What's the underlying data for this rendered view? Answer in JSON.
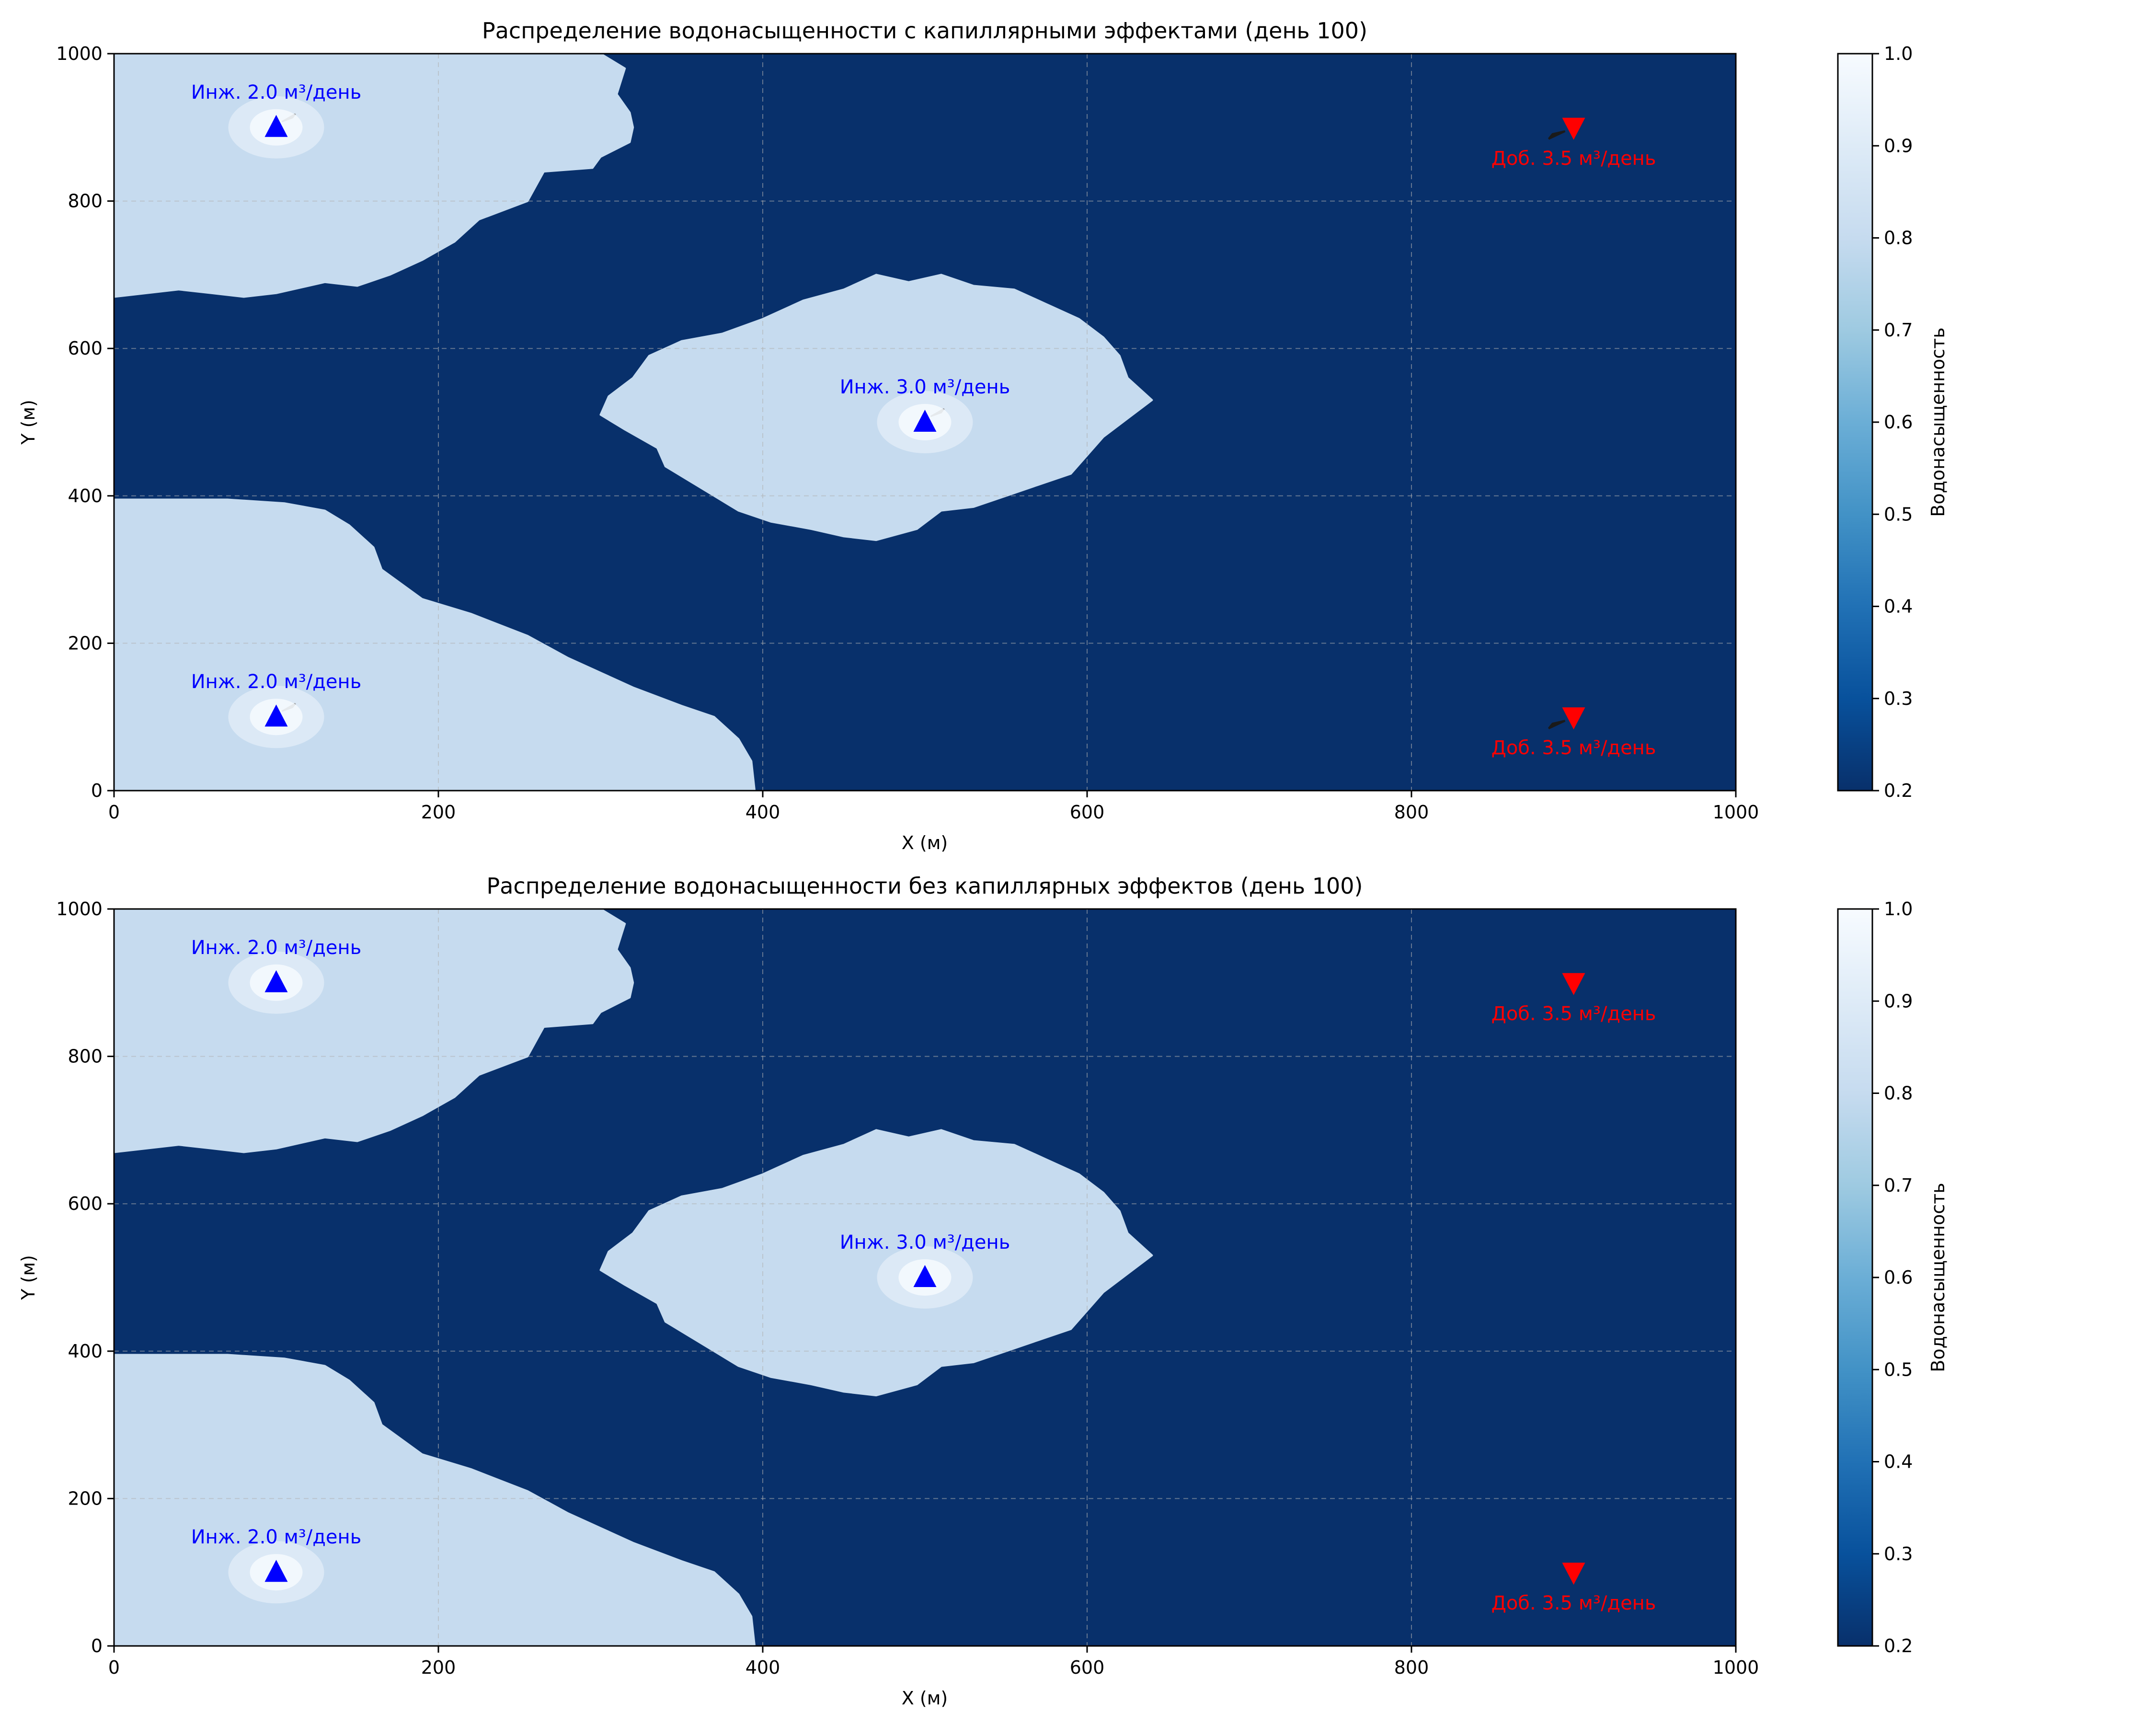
{
  "chart_data": [
    {
      "type": "heatmap",
      "title": "Распределение водонасыщенности с капиллярными эффектами (день 100)",
      "xlabel": "X (м)",
      "ylabel": "Y (м)",
      "xlim": [
        0,
        1000
      ],
      "ylim": [
        0,
        1000
      ],
      "xticks": [
        "0",
        "200",
        "400",
        "600",
        "800",
        "1000"
      ],
      "yticks": [
        "0",
        "200",
        "400",
        "600",
        "800",
        "1000"
      ],
      "grid": true,
      "colorbar": {
        "label": "Водонасыщенность",
        "range": [
          0.2,
          1.0
        ],
        "ticks": [
          "0.2",
          "0.3",
          "0.4",
          "0.5",
          "0.6",
          "0.7",
          "0.8",
          "0.9",
          "1.0"
        ],
        "colormap": "Blues_r"
      },
      "field": {
        "background_saturation": 0.2,
        "flooded_saturation": 0.78,
        "flooded_regions": [
          {
            "name": "top-left",
            "boundary": [
              [
                0,
                1000
              ],
              [
                300,
                1000
              ],
              [
                315,
                980
              ],
              [
                310,
                945
              ],
              [
                318,
                920
              ],
              [
                320,
                900
              ],
              [
                318,
                880
              ],
              [
                300,
                860
              ],
              [
                295,
                845
              ],
              [
                265,
                840
              ],
              [
                260,
                820
              ],
              [
                255,
                800
              ],
              [
                225,
                775
              ],
              [
                210,
                745
              ],
              [
                190,
                720
              ],
              [
                170,
                700
              ],
              [
                150,
                685
              ],
              [
                130,
                690
              ],
              [
                100,
                675
              ],
              [
                80,
                670
              ],
              [
                60,
                675
              ],
              [
                40,
                680
              ],
              [
                0,
                670
              ]
            ]
          },
          {
            "name": "center",
            "boundary": [
              [
                330,
                590
              ],
              [
                350,
                610
              ],
              [
                375,
                620
              ],
              [
                400,
                640
              ],
              [
                425,
                665
              ],
              [
                450,
                680
              ],
              [
                470,
                700
              ],
              [
                490,
                690
              ],
              [
                510,
                700
              ],
              [
                530,
                685
              ],
              [
                555,
                680
              ],
              [
                575,
                660
              ],
              [
                595,
                640
              ],
              [
                610,
                615
              ],
              [
                620,
                590
              ],
              [
                625,
                560
              ],
              [
                640,
                530
              ],
              [
                625,
                505
              ],
              [
                610,
                480
              ],
              [
                600,
                455
              ],
              [
                590,
                430
              ],
              [
                570,
                415
              ],
              [
                550,
                400
              ],
              [
                530,
                385
              ],
              [
                510,
                380
              ],
              [
                495,
                355
              ],
              [
                470,
                340
              ],
              [
                450,
                345
              ],
              [
                430,
                355
              ],
              [
                405,
                365
              ],
              [
                385,
                380
              ],
              [
                370,
                400
              ],
              [
                355,
                420
              ],
              [
                340,
                440
              ],
              [
                335,
                465
              ],
              [
                315,
                490
              ],
              [
                300,
                510
              ],
              [
                305,
                535
              ],
              [
                320,
                560
              ]
            ]
          },
          {
            "name": "bottom-left",
            "boundary": [
              [
                0,
                0
              ],
              [
                395,
                0
              ],
              [
                393,
                40
              ],
              [
                385,
                70
              ],
              [
                370,
                100
              ],
              [
                350,
                115
              ],
              [
                320,
                140
              ],
              [
                300,
                160
              ],
              [
                280,
                180
              ],
              [
                255,
                210
              ],
              [
                220,
                240
              ],
              [
                190,
                260
              ],
              [
                165,
                300
              ],
              [
                160,
                330
              ],
              [
                145,
                360
              ],
              [
                130,
                380
              ],
              [
                105,
                390
              ],
              [
                70,
                395
              ],
              [
                0,
                395
              ]
            ]
          }
        ]
      },
      "wells": [
        {
          "kind": "injector",
          "x": 100,
          "y": 900,
          "label": "Инж. 2.0 м³/день"
        },
        {
          "kind": "injector",
          "x": 100,
          "y": 100,
          "label": "Инж. 2.0 м³/день"
        },
        {
          "kind": "injector",
          "x": 500,
          "y": 500,
          "label": "Инж. 3.0 м³/день"
        },
        {
          "kind": "producer",
          "x": 900,
          "y": 900,
          "label": "Доб. 3.5 м³/день"
        },
        {
          "kind": "producer",
          "x": 900,
          "y": 100,
          "label": "Доб. 3.5 м³/день"
        }
      ],
      "velocity_arrows": true
    },
    {
      "type": "heatmap",
      "title": "Распределение водонасыщенности без капиллярных эффектов (день 100)",
      "xlabel": "X (м)",
      "ylabel": "Y (м)",
      "xlim": [
        0,
        1000
      ],
      "ylim": [
        0,
        1000
      ],
      "xticks": [
        "0",
        "200",
        "400",
        "600",
        "800",
        "1000"
      ],
      "yticks": [
        "0",
        "200",
        "400",
        "600",
        "800",
        "1000"
      ],
      "grid": true,
      "colorbar": {
        "label": "Водонасыщенность",
        "range": [
          0.2,
          1.0
        ],
        "ticks": [
          "0.2",
          "0.3",
          "0.4",
          "0.5",
          "0.6",
          "0.7",
          "0.8",
          "0.9",
          "1.0"
        ],
        "colormap": "Blues_r"
      },
      "field": {
        "background_saturation": 0.2,
        "flooded_saturation": 0.78,
        "flooded_regions": [
          {
            "name": "top-left",
            "boundary": [
              [
                0,
                1000
              ],
              [
                300,
                1000
              ],
              [
                315,
                980
              ],
              [
                310,
                945
              ],
              [
                318,
                920
              ],
              [
                320,
                900
              ],
              [
                318,
                880
              ],
              [
                300,
                860
              ],
              [
                295,
                845
              ],
              [
                265,
                840
              ],
              [
                260,
                820
              ],
              [
                255,
                800
              ],
              [
                225,
                775
              ],
              [
                210,
                745
              ],
              [
                190,
                720
              ],
              [
                170,
                700
              ],
              [
                150,
                685
              ],
              [
                130,
                690
              ],
              [
                100,
                675
              ],
              [
                80,
                670
              ],
              [
                60,
                675
              ],
              [
                40,
                680
              ],
              [
                0,
                670
              ]
            ]
          },
          {
            "name": "center",
            "boundary": [
              [
                330,
                590
              ],
              [
                350,
                610
              ],
              [
                375,
                620
              ],
              [
                400,
                640
              ],
              [
                425,
                665
              ],
              [
                450,
                680
              ],
              [
                470,
                700
              ],
              [
                490,
                690
              ],
              [
                510,
                700
              ],
              [
                530,
                685
              ],
              [
                555,
                680
              ],
              [
                575,
                660
              ],
              [
                595,
                640
              ],
              [
                610,
                615
              ],
              [
                620,
                590
              ],
              [
                625,
                560
              ],
              [
                640,
                530
              ],
              [
                625,
                505
              ],
              [
                610,
                480
              ],
              [
                600,
                455
              ],
              [
                590,
                430
              ],
              [
                570,
                415
              ],
              [
                550,
                400
              ],
              [
                530,
                385
              ],
              [
                510,
                380
              ],
              [
                495,
                355
              ],
              [
                470,
                340
              ],
              [
                450,
                345
              ],
              [
                430,
                355
              ],
              [
                405,
                365
              ],
              [
                385,
                380
              ],
              [
                370,
                400
              ],
              [
                355,
                420
              ],
              [
                340,
                440
              ],
              [
                335,
                465
              ],
              [
                315,
                490
              ],
              [
                300,
                510
              ],
              [
                305,
                535
              ],
              [
                320,
                560
              ]
            ]
          },
          {
            "name": "bottom-left",
            "boundary": [
              [
                0,
                0
              ],
              [
                395,
                0
              ],
              [
                393,
                40
              ],
              [
                385,
                70
              ],
              [
                370,
                100
              ],
              [
                350,
                115
              ],
              [
                320,
                140
              ],
              [
                300,
                160
              ],
              [
                280,
                180
              ],
              [
                255,
                210
              ],
              [
                220,
                240
              ],
              [
                190,
                260
              ],
              [
                165,
                300
              ],
              [
                160,
                330
              ],
              [
                145,
                360
              ],
              [
                130,
                380
              ],
              [
                105,
                390
              ],
              [
                70,
                395
              ],
              [
                0,
                395
              ]
            ]
          }
        ]
      },
      "wells": [
        {
          "kind": "injector",
          "x": 100,
          "y": 900,
          "label": "Инж. 2.0 м³/день"
        },
        {
          "kind": "injector",
          "x": 100,
          "y": 100,
          "label": "Инж. 2.0 м³/день"
        },
        {
          "kind": "injector",
          "x": 500,
          "y": 500,
          "label": "Инж. 3.0 м³/день"
        },
        {
          "kind": "producer",
          "x": 900,
          "y": 900,
          "label": "Доб. 3.5 м³/день"
        },
        {
          "kind": "producer",
          "x": 900,
          "y": 100,
          "label": "Доб. 3.5 м³/день"
        }
      ],
      "velocity_arrows": false
    }
  ],
  "colors": {
    "background_field": "#08306b",
    "flooded_field": "#c6dbef",
    "well_core": "#f7fbff",
    "injector": "#0000ff",
    "producer": "#ff0000",
    "grid": "#b0b0b0",
    "arrow": "#555555",
    "arrow_dark": "#1a1a1a",
    "colormap_stops": [
      "#08306b",
      "#08519c",
      "#2171b5",
      "#4292c6",
      "#6baed6",
      "#9ecae1",
      "#c6dbef",
      "#deebf7",
      "#f7fbff"
    ]
  }
}
